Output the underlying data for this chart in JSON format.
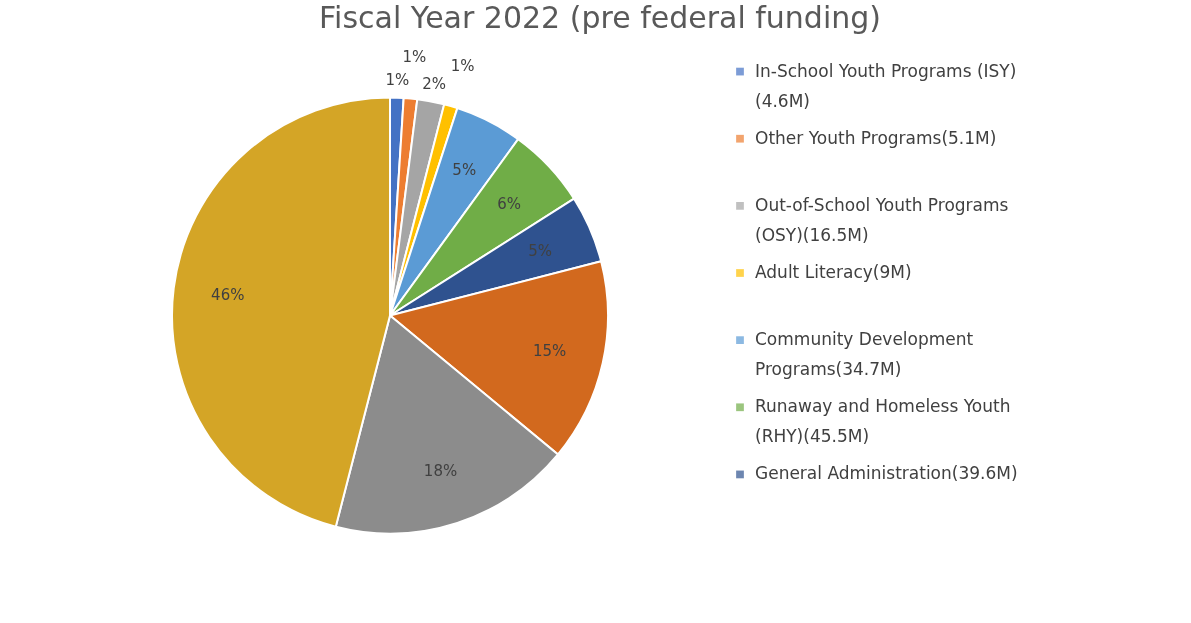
{
  "chart_data": {
    "type": "pie",
    "title": "Fiscal Year 2022 (pre federal funding)",
    "categories": [
      "In-School Youth Programs (ISY) (4.6M)",
      "Other Youth Programs(5.1M)",
      "Out-of-School Youth Programs (OSY)(16.5M)",
      "Adult Literacy(9M)",
      "Community Development Programs(34.7M)",
      "Runaway and Homeless Youth (RHY)(45.5M)",
      "General Administration(39.6M)",
      null,
      null,
      null
    ],
    "values": [
      1,
      1,
      2,
      1,
      5,
      6,
      5,
      15,
      18,
      46
    ],
    "value_labels": [
      "1%",
      "1%",
      "2%",
      "1%",
      "5%",
      "6%",
      "5%",
      "15%",
      "18%",
      "46%"
    ],
    "colors": [
      "#4472c4",
      "#ed7d31",
      "#a5a5a5",
      "#ffc000",
      "#5b9bd5",
      "#70ad47",
      "#2f528f",
      "#d2691e",
      "#8c8c8c",
      "#d4a526"
    ],
    "legend": "right"
  }
}
